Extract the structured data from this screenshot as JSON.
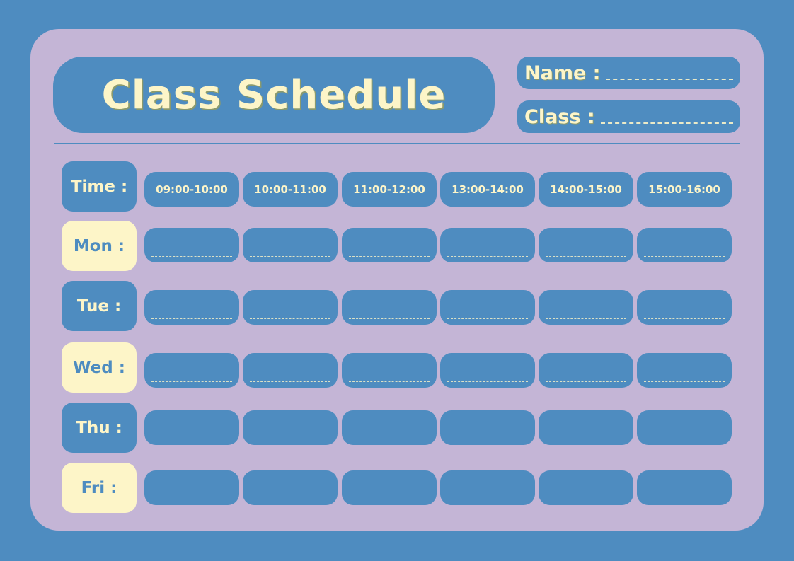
{
  "colors": {
    "background": "#4e8cc0",
    "card": "#c4b5d6",
    "accent": "#fdf5c8"
  },
  "title": "Class Schedule",
  "fields": {
    "name_label": "Name :",
    "class_label": "Class :"
  },
  "time_label": "Time :",
  "times": [
    "09:00-10:00",
    "10:00-11:00",
    "11:00-12:00",
    "13:00-14:00",
    "14:00-15:00",
    "15:00-16:00"
  ],
  "days": [
    "Mon :",
    "Tue :",
    "Wed :",
    "Thu :",
    "Fri :"
  ]
}
